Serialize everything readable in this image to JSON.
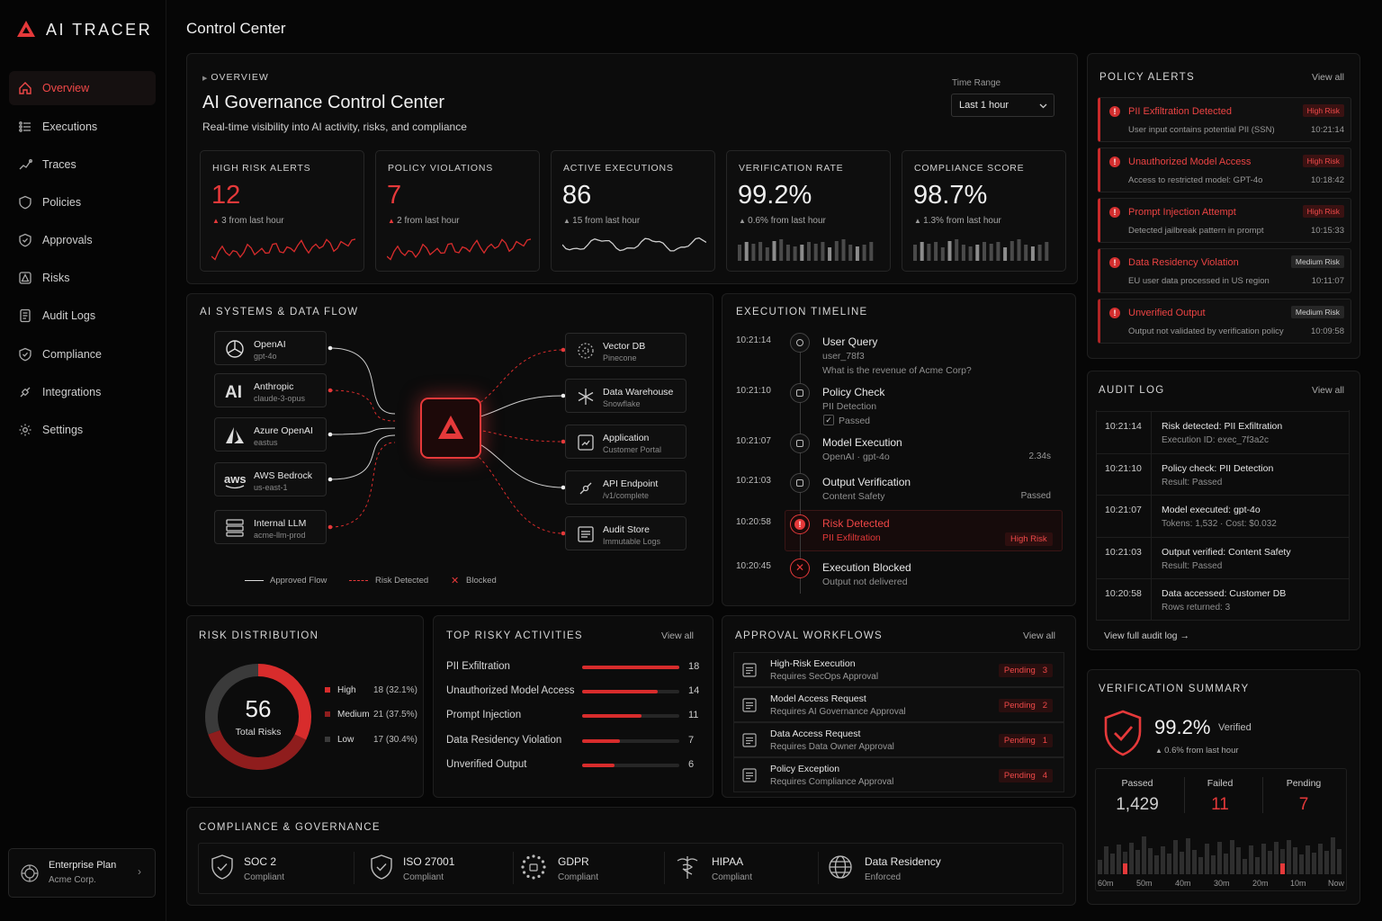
{
  "app": {
    "name": "AI TRACER",
    "page_title": "Control Center"
  },
  "sidebar": {
    "items": [
      {
        "label": "Overview",
        "icon": "home-icon",
        "active": true
      },
      {
        "label": "Executions",
        "icon": "list-icon"
      },
      {
        "label": "Traces",
        "icon": "trace-icon"
      },
      {
        "label": "Policies",
        "icon": "shield-icon"
      },
      {
        "label": "Approvals",
        "icon": "shield-check-icon"
      },
      {
        "label": "Risks",
        "icon": "alert-icon"
      },
      {
        "label": "Audit Logs",
        "icon": "document-icon"
      },
      {
        "label": "Compliance",
        "icon": "shield-icon"
      },
      {
        "label": "Integrations",
        "icon": "plug-icon"
      },
      {
        "label": "Settings",
        "icon": "gear-icon"
      }
    ],
    "plan": {
      "name": "Enterprise Plan",
      "org": "Acme Corp."
    }
  },
  "overview": {
    "eyebrow": "OVERVIEW",
    "title": "AI Governance Control Center",
    "subtitle": "Real-time visibility into AI activity, risks, and compliance",
    "time_range_label": "Time Range",
    "time_range_value": "Last 1 hour"
  },
  "metrics": [
    {
      "label": "HIGH RISK ALERTS",
      "value": "12",
      "change": "3 from last hour",
      "accent": "#e5393a"
    },
    {
      "label": "POLICY VIOLATIONS",
      "value": "7",
      "change": "2 from last hour",
      "accent": "#e5393a"
    },
    {
      "label": "ACTIVE EXECUTIONS",
      "value": "86",
      "change": "15 from last hour",
      "accent": "#9a9a9a"
    },
    {
      "label": "VERIFICATION RATE",
      "value": "99.2%",
      "change": "0.6% from last hour",
      "accent": "#9a9a9a"
    },
    {
      "label": "COMPLIANCE SCORE",
      "value": "98.7%",
      "change": "1.3% from last hour",
      "accent": "#9a9a9a"
    }
  ],
  "flow": {
    "title": "AI SYSTEMS & DATA FLOW",
    "sources": [
      {
        "name": "OpenAI",
        "sub": "gpt-4o",
        "icon": "openai-icon",
        "status": "approved"
      },
      {
        "name": "Anthropic",
        "sub": "claude-3-opus",
        "icon": "anthropic-icon",
        "status": "risk"
      },
      {
        "name": "Azure OpenAI",
        "sub": "eastus",
        "icon": "azure-icon",
        "status": "approved"
      },
      {
        "name": "AWS Bedrock",
        "sub": "us-east-1",
        "icon": "aws-icon",
        "status": "approved"
      },
      {
        "name": "Internal LLM",
        "sub": "acme-llm-prod",
        "icon": "server-icon",
        "status": "risk"
      }
    ],
    "targets": [
      {
        "name": "Vector DB",
        "sub": "Pinecone",
        "icon": "vector-db-icon",
        "status": "risk"
      },
      {
        "name": "Data Warehouse",
        "sub": "Snowflake",
        "icon": "snowflake-icon",
        "status": "approved"
      },
      {
        "name": "Application",
        "sub": "Customer Portal",
        "icon": "app-icon",
        "status": "risk"
      },
      {
        "name": "API Endpoint",
        "sub": "/v1/complete",
        "icon": "api-icon",
        "status": "approved"
      },
      {
        "name": "Audit Store",
        "sub": "Immutable Logs",
        "icon": "archive-icon",
        "status": "risk"
      }
    ],
    "legend": {
      "approved": "Approved Flow",
      "risk": "Risk Detected",
      "blocked": "Blocked"
    }
  },
  "timeline": {
    "title": "EXECUTION TIMELINE",
    "events": [
      {
        "time": "10:21:14",
        "title": "User Query",
        "lines": [
          "user_78f3",
          "What is the revenue of Acme Corp?"
        ],
        "icon": "user-icon"
      },
      {
        "time": "10:21:10",
        "title": "Policy Check",
        "lines": [
          "PII Detection",
          "Passed"
        ],
        "icon": "policy-icon"
      },
      {
        "time": "10:21:07",
        "title": "Model Execution",
        "lines": [
          "OpenAI · gpt-4o"
        ],
        "meta": "2.34s",
        "icon": "cpu-icon"
      },
      {
        "time": "10:21:03",
        "title": "Output Verification",
        "lines": [
          "Content Safety"
        ],
        "meta": "Passed",
        "icon": "verify-icon"
      },
      {
        "time": "10:20:58",
        "title": "Risk Detected",
        "lines": [
          "PII Exfiltration"
        ],
        "badge": "High Risk",
        "icon": "alert-icon"
      },
      {
        "time": "10:20:45",
        "title": "Execution Blocked",
        "lines": [
          "Output not delivered"
        ],
        "icon": "blocked-icon"
      }
    ]
  },
  "policy_alerts": {
    "title": "POLICY ALERTS",
    "view_all": "View all",
    "items": [
      {
        "title": "PII Exfiltration Detected",
        "desc": "User input contains potential PII (SSN)",
        "badge": "High Risk",
        "time": "10:21:14",
        "level": "high"
      },
      {
        "title": "Unauthorized Model Access",
        "desc": "Access to restricted model: GPT-4o",
        "badge": "High Risk",
        "time": "10:18:42",
        "level": "high"
      },
      {
        "title": "Prompt Injection Attempt",
        "desc": "Detected jailbreak pattern in prompt",
        "badge": "High Risk",
        "time": "10:15:33",
        "level": "high"
      },
      {
        "title": "Data Residency Violation",
        "desc": "EU user data processed in US region",
        "badge": "Medium Risk",
        "time": "10:11:07",
        "level": "medium"
      },
      {
        "title": "Unverified Output",
        "desc": "Output not validated by verification policy",
        "badge": "Medium Risk",
        "time": "10:09:58",
        "level": "medium"
      }
    ]
  },
  "audit_log": {
    "title": "AUDIT LOG",
    "view_all": "View all",
    "footer": "View full audit log →",
    "items": [
      {
        "time": "10:21:14",
        "title": "Risk detected: PII Exfiltration",
        "sub": "Execution ID: exec_7f3a2c"
      },
      {
        "time": "10:21:10",
        "title": "Policy check: PII Detection",
        "sub": "Result: Passed"
      },
      {
        "time": "10:21:07",
        "title": "Model executed: gpt-4o",
        "sub": "Tokens: 1,532 · Cost: $0.032"
      },
      {
        "time": "10:21:03",
        "title": "Output verified: Content Safety",
        "sub": "Result: Passed"
      },
      {
        "time": "10:20:58",
        "title": "Data accessed: Customer DB",
        "sub": "Rows returned: 3"
      }
    ]
  },
  "risk_distribution": {
    "title": "RISK DISTRIBUTION",
    "total": "56",
    "total_label": "Total Risks",
    "items": [
      {
        "label": "High",
        "value": 18,
        "display": "18 (32.1%)",
        "color": "#d82c2c"
      },
      {
        "label": "Medium",
        "value": 21,
        "display": "21 (37.5%)",
        "color": "#8f1d1d"
      },
      {
        "label": "Low",
        "value": 17,
        "display": "17 (30.4%)",
        "color": "#3a3a3a"
      }
    ]
  },
  "risky_activities": {
    "title": "TOP RISKY ACTIVITIES",
    "view_all": "View all",
    "max": 18,
    "items": [
      {
        "label": "PII Exfiltration",
        "value": 18
      },
      {
        "label": "Unauthorized Model Access",
        "value": 14
      },
      {
        "label": "Prompt Injection",
        "value": 11
      },
      {
        "label": "Data Residency Violation",
        "value": 7
      },
      {
        "label": "Unverified Output",
        "value": 6
      }
    ]
  },
  "approvals": {
    "title": "APPROVAL WORKFLOWS",
    "view_all": "View all",
    "items": [
      {
        "title": "High-Risk Execution",
        "sub": "Requires SecOps Approval",
        "status": "Pending",
        "count": "3"
      },
      {
        "title": "Model Access Request",
        "sub": "Requires AI Governance Approval",
        "status": "Pending",
        "count": "2"
      },
      {
        "title": "Data Access Request",
        "sub": "Requires Data Owner Approval",
        "status": "Pending",
        "count": "1"
      },
      {
        "title": "Policy Exception",
        "sub": "Requires Compliance Approval",
        "status": "Pending",
        "count": "4"
      }
    ]
  },
  "compliance": {
    "title": "COMPLIANCE & GOVERNANCE",
    "items": [
      {
        "name": "SOC 2",
        "status": "Compliant",
        "icon": "shield-check-icon"
      },
      {
        "name": "ISO 27001",
        "status": "Compliant",
        "icon": "shield-check-icon"
      },
      {
        "name": "GDPR",
        "status": "Compliant",
        "icon": "gdpr-stars-icon"
      },
      {
        "name": "HIPAA",
        "status": "Compliant",
        "icon": "caduceus-icon"
      },
      {
        "name": "Data Residency",
        "status": "Enforced",
        "icon": "globe-icon"
      }
    ]
  },
  "verification": {
    "title": "VERIFICATION SUMMARY",
    "rate": "99.2%",
    "rate_label": "Verified",
    "change": "0.6% from last hour",
    "stats": [
      {
        "label": "Passed",
        "value": "1,429"
      },
      {
        "label": "Failed",
        "value": "11"
      },
      {
        "label": "Pending",
        "value": "7"
      }
    ],
    "x_labels": [
      "60m",
      "50m",
      "40m",
      "30m",
      "20m",
      "10m",
      "Now"
    ]
  }
}
